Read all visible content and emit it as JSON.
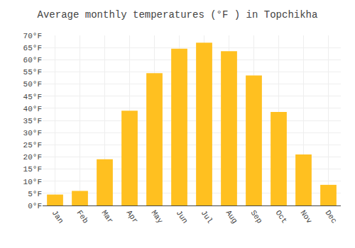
{
  "chart_data": {
    "type": "bar",
    "title": "Average monthly temperatures (°F ) in Topchikha",
    "categories": [
      "Jan",
      "Feb",
      "Mar",
      "Apr",
      "May",
      "Jun",
      "Jul",
      "Aug",
      "Sep",
      "Oct",
      "Nov",
      "Dec"
    ],
    "values": [
      4.5,
      6.0,
      19.0,
      39.0,
      54.5,
      64.5,
      67.0,
      63.5,
      53.5,
      38.5,
      21.0,
      8.5
    ],
    "color": "#FFC020",
    "ylim": [
      0,
      70
    ],
    "yticks": [
      {
        "value": 0,
        "label": "0°F"
      },
      {
        "value": 5,
        "label": "5°F"
      },
      {
        "value": 10,
        "label": "10°F"
      },
      {
        "value": 15,
        "label": "15°F"
      },
      {
        "value": 20,
        "label": "20°F"
      },
      {
        "value": 25,
        "label": "25°F"
      },
      {
        "value": 30,
        "label": "30°F"
      },
      {
        "value": 35,
        "label": "35°F"
      },
      {
        "value": 40,
        "label": "40°F"
      },
      {
        "value": 45,
        "label": "45°F"
      },
      {
        "value": 50,
        "label": "50°F"
      },
      {
        "value": 55,
        "label": "55°F"
      },
      {
        "value": 60,
        "label": "60°F"
      },
      {
        "value": 65,
        "label": "65°F"
      },
      {
        "value": 70,
        "label": "70°F"
      }
    ],
    "grid": true
  }
}
